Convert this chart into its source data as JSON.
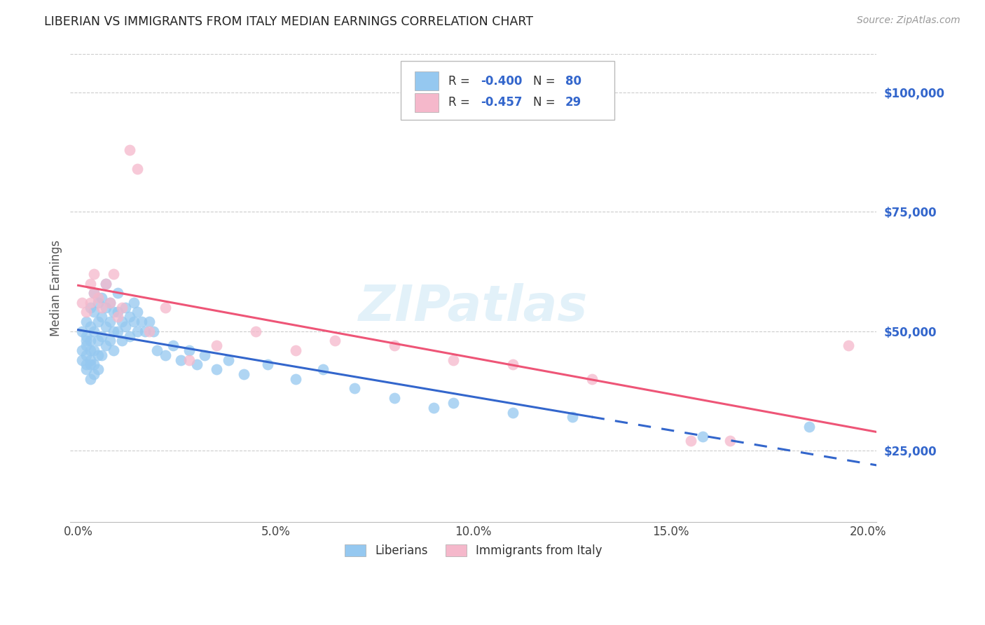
{
  "title": "LIBERIAN VS IMMIGRANTS FROM ITALY MEDIAN EARNINGS CORRELATION CHART",
  "source": "Source: ZipAtlas.com",
  "ylabel": "Median Earnings",
  "xlim": [
    -0.002,
    0.202
  ],
  "ylim": [
    10000,
    108000
  ],
  "yticks": [
    25000,
    50000,
    75000,
    100000
  ],
  "ytick_labels": [
    "$25,000",
    "$50,000",
    "$75,000",
    "$100,000"
  ],
  "xticks": [
    0.0,
    0.05,
    0.1,
    0.15,
    0.2
  ],
  "xtick_labels": [
    "0.0%",
    "5.0%",
    "10.0%",
    "15.0%",
    "20.0%"
  ],
  "label1": "Liberians",
  "label2": "Immigrants from Italy",
  "color1": "#95C8F0",
  "color2": "#F5B8CB",
  "line_color1": "#3366CC",
  "line_color2": "#EE5577",
  "watermark": "ZIPatlas",
  "blue_scatter_x": [
    0.001,
    0.001,
    0.001,
    0.002,
    0.002,
    0.002,
    0.002,
    0.002,
    0.002,
    0.002,
    0.003,
    0.003,
    0.003,
    0.003,
    0.003,
    0.003,
    0.003,
    0.004,
    0.004,
    0.004,
    0.004,
    0.004,
    0.004,
    0.005,
    0.005,
    0.005,
    0.005,
    0.005,
    0.006,
    0.006,
    0.006,
    0.006,
    0.007,
    0.007,
    0.007,
    0.007,
    0.008,
    0.008,
    0.008,
    0.009,
    0.009,
    0.009,
    0.01,
    0.01,
    0.01,
    0.011,
    0.011,
    0.012,
    0.012,
    0.013,
    0.013,
    0.014,
    0.014,
    0.015,
    0.015,
    0.016,
    0.017,
    0.018,
    0.019,
    0.02,
    0.022,
    0.024,
    0.026,
    0.028,
    0.03,
    0.032,
    0.035,
    0.038,
    0.042,
    0.048,
    0.055,
    0.062,
    0.07,
    0.08,
    0.09,
    0.095,
    0.11,
    0.125,
    0.158,
    0.185
  ],
  "blue_scatter_y": [
    46000,
    50000,
    44000,
    48000,
    52000,
    45000,
    43000,
    47000,
    42000,
    49000,
    55000,
    51000,
    48000,
    44000,
    40000,
    46000,
    43000,
    58000,
    54000,
    50000,
    46000,
    43000,
    41000,
    56000,
    52000,
    48000,
    45000,
    42000,
    57000,
    53000,
    49000,
    45000,
    60000,
    55000,
    51000,
    47000,
    56000,
    52000,
    48000,
    54000,
    50000,
    46000,
    58000,
    54000,
    50000,
    52000,
    48000,
    55000,
    51000,
    53000,
    49000,
    56000,
    52000,
    54000,
    50000,
    52000,
    50000,
    52000,
    50000,
    46000,
    45000,
    47000,
    44000,
    46000,
    43000,
    45000,
    42000,
    44000,
    41000,
    43000,
    40000,
    42000,
    38000,
    36000,
    34000,
    35000,
    33000,
    32000,
    28000,
    30000
  ],
  "pink_scatter_x": [
    0.001,
    0.002,
    0.003,
    0.003,
    0.004,
    0.004,
    0.005,
    0.006,
    0.007,
    0.008,
    0.009,
    0.01,
    0.011,
    0.013,
    0.015,
    0.018,
    0.022,
    0.028,
    0.035,
    0.045,
    0.055,
    0.065,
    0.08,
    0.095,
    0.11,
    0.13,
    0.155,
    0.165,
    0.195
  ],
  "pink_scatter_y": [
    56000,
    54000,
    60000,
    56000,
    62000,
    58000,
    57000,
    55000,
    60000,
    56000,
    62000,
    53000,
    55000,
    88000,
    84000,
    50000,
    55000,
    44000,
    47000,
    50000,
    46000,
    48000,
    47000,
    44000,
    43000,
    40000,
    27000,
    27000,
    47000
  ]
}
